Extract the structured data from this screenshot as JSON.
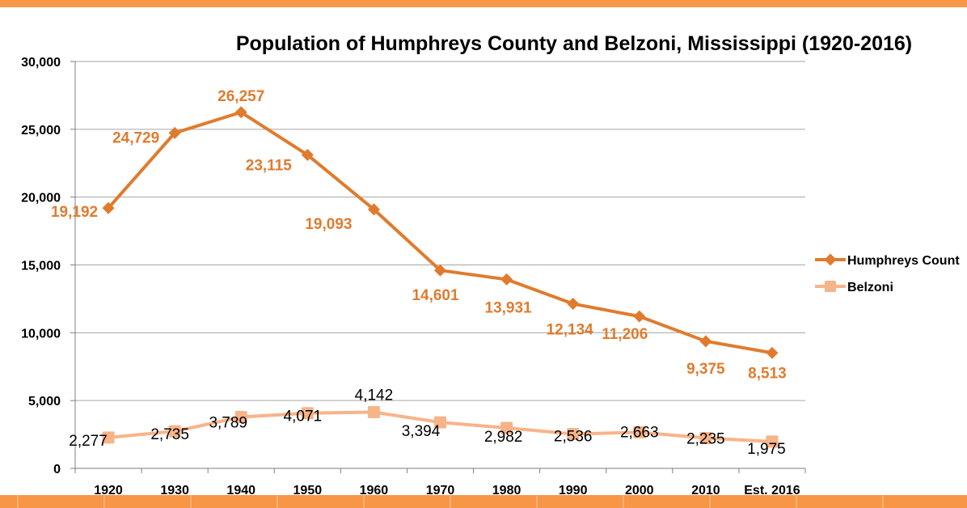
{
  "colors": {
    "humphreys": "#E07B2E",
    "humphreys_label": "#E07B2E",
    "belzoni": "#F7B489",
    "frame_bar": "#F79646",
    "grid": "#A6A6A6"
  },
  "chart_data": {
    "type": "line",
    "title": "Population of Humphreys County and Belzoni, Mississippi (1920-2016)",
    "xlabel": "",
    "ylabel": "",
    "categories": [
      "1920",
      "1930",
      "1940",
      "1950",
      "1960",
      "1970",
      "1980",
      "1990",
      "2000",
      "2010",
      "Est. 2016"
    ],
    "ylim": [
      0,
      30000
    ],
    "yticks": [
      0,
      5000,
      10000,
      15000,
      20000,
      25000,
      30000
    ],
    "ytick_labels": [
      "0",
      "5,000",
      "10,000",
      "15,000",
      "20,000",
      "25,000",
      "30,000"
    ],
    "grid": true,
    "legend_position": "right",
    "series": [
      {
        "name": "Humphreys Count",
        "marker": "diamond",
        "values": [
          19192,
          24729,
          26257,
          23115,
          19093,
          14601,
          13931,
          12134,
          11206,
          9375,
          8513
        ],
        "labels": [
          "19,192",
          "24,729",
          "26,257",
          "23,115",
          "19,093",
          "14,601",
          "13,931",
          "12,134",
          "11,206",
          "9,375",
          "8,513"
        ]
      },
      {
        "name": "Belzoni",
        "marker": "square",
        "values": [
          2277,
          2735,
          3789,
          4071,
          4142,
          3394,
          2982,
          2536,
          2663,
          2235,
          1975
        ],
        "labels": [
          "2,277",
          "2,735",
          "3,789",
          "4,071",
          "4,142",
          "3,394",
          "2,982",
          "2,536",
          "2,663",
          "2,235",
          "1,975"
        ]
      }
    ]
  }
}
